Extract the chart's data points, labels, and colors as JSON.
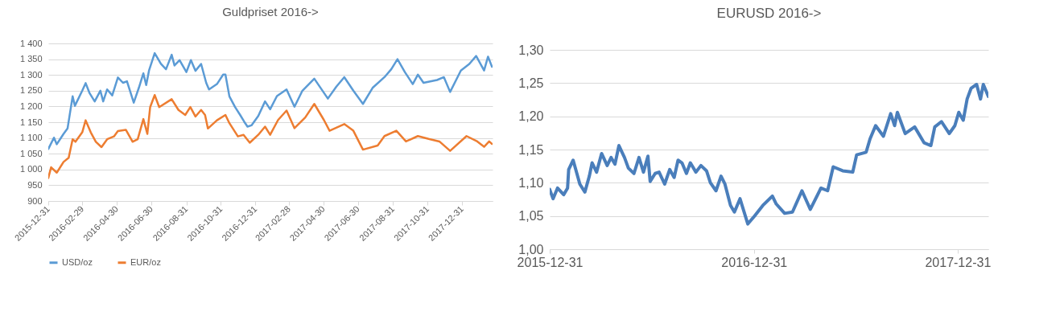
{
  "chart_data": [
    {
      "type": "line",
      "title": "Guldpriset  2016->",
      "xlim": [
        "2015-12-31",
        "2018-02-23"
      ],
      "xticks": [
        "2015-12-31",
        "2016-02-29",
        "2016-04-30",
        "2016-06-30",
        "2016-08-31",
        "2016-10-31",
        "2016-12-31",
        "2017-02-28",
        "2017-04-30",
        "2017-06-30",
        "2017-08-31",
        "2017-10-31",
        "2017-12-31"
      ],
      "ylim": [
        900,
        1400
      ],
      "yticks": [
        {
          "value": 900,
          "label": "900"
        },
        {
          "value": 950,
          "label": "950"
        },
        {
          "value": 1000,
          "label": "1 000"
        },
        {
          "value": 1050,
          "label": "1 050"
        },
        {
          "value": 1100,
          "label": "1 100"
        },
        {
          "value": 1150,
          "label": "1 150"
        },
        {
          "value": 1200,
          "label": "1 200"
        },
        {
          "value": 1250,
          "label": "1 250"
        },
        {
          "value": 1300,
          "label": "1 300"
        },
        {
          "value": 1350,
          "label": "1 350"
        },
        {
          "value": 1400,
          "label": "1 400"
        }
      ],
      "grid": "y",
      "legend": "bottom",
      "series": [
        {
          "name": "USD/oz",
          "color": "#5b9bd5",
          "x": [
            "2015-12-31",
            "2016-01-10",
            "2016-01-15",
            "2016-01-27",
            "2016-02-03",
            "2016-02-12",
            "2016-02-16",
            "2016-02-29",
            "2016-03-06",
            "2016-03-13",
            "2016-03-22",
            "2016-04-01",
            "2016-04-06",
            "2016-04-13",
            "2016-04-22",
            "2016-05-02",
            "2016-05-11",
            "2016-05-18",
            "2016-05-30",
            "2016-06-08",
            "2016-06-16",
            "2016-06-21",
            "2016-06-26",
            "2016-07-06",
            "2016-07-17",
            "2016-07-26",
            "2016-08-05",
            "2016-08-10",
            "2016-08-19",
            "2016-08-31",
            "2016-09-08",
            "2016-09-16",
            "2016-09-26",
            "2016-10-05",
            "2016-10-10",
            "2016-10-24",
            "2016-11-04",
            "2016-11-08",
            "2016-11-15",
            "2016-11-25",
            "2016-12-04",
            "2016-12-11",
            "2016-12-17",
            "2016-12-24",
            "2017-01-05",
            "2017-01-17",
            "2017-01-26",
            "2017-02-07",
            "2017-02-24",
            "2017-03-10",
            "2017-03-24",
            "2017-04-14",
            "2017-05-08",
            "2017-05-23",
            "2017-06-06",
            "2017-06-22",
            "2017-07-09",
            "2017-07-26",
            "2017-08-16",
            "2017-08-28",
            "2017-09-08",
            "2017-09-21",
            "2017-10-05",
            "2017-10-14",
            "2017-10-24",
            "2017-11-17",
            "2017-11-29",
            "2017-12-10",
            "2017-12-29",
            "2018-01-13",
            "2018-01-25",
            "2018-02-08",
            "2018-02-15",
            "2018-02-22"
          ],
          "values": [
            1065,
            1101,
            1080,
            1113,
            1130,
            1232,
            1202,
            1250,
            1274,
            1242,
            1216,
            1250,
            1216,
            1254,
            1235,
            1292,
            1275,
            1280,
            1212,
            1259,
            1305,
            1268,
            1314,
            1369,
            1335,
            1318,
            1364,
            1330,
            1347,
            1309,
            1347,
            1313,
            1335,
            1275,
            1254,
            1271,
            1301,
            1301,
            1232,
            1198,
            1173,
            1152,
            1136,
            1140,
            1170,
            1216,
            1191,
            1233,
            1254,
            1199,
            1250,
            1288,
            1225,
            1263,
            1293,
            1250,
            1208,
            1259,
            1293,
            1318,
            1350,
            1309,
            1271,
            1301,
            1275,
            1284,
            1293,
            1246,
            1314,
            1335,
            1360,
            1314,
            1358,
            1326
          ]
        },
        {
          "name": "EUR/oz",
          "color": "#ed7d31",
          "x": [
            "2015-12-31",
            "2016-01-05",
            "2016-01-15",
            "2016-01-27",
            "2016-02-05",
            "2016-02-12",
            "2016-02-17",
            "2016-02-29",
            "2016-03-06",
            "2016-03-15",
            "2016-03-24",
            "2016-04-03",
            "2016-04-13",
            "2016-04-25",
            "2016-05-02",
            "2016-05-16",
            "2016-05-28",
            "2016-06-06",
            "2016-06-16",
            "2016-06-23",
            "2016-06-28",
            "2016-07-06",
            "2016-07-14",
            "2016-08-05",
            "2016-08-17",
            "2016-08-29",
            "2016-09-07",
            "2016-09-16",
            "2016-09-26",
            "2016-10-03",
            "2016-10-08",
            "2016-10-24",
            "2016-11-08",
            "2016-11-15",
            "2016-11-30",
            "2016-12-10",
            "2016-12-21",
            "2017-01-05",
            "2017-01-17",
            "2017-01-26",
            "2017-02-09",
            "2017-02-24",
            "2017-03-10",
            "2017-03-29",
            "2017-04-14",
            "2017-05-01",
            "2017-05-11",
            "2017-06-06",
            "2017-06-22",
            "2017-07-09",
            "2017-08-04",
            "2017-08-16",
            "2017-09-06",
            "2017-09-23",
            "2017-10-14",
            "2017-11-02",
            "2017-11-21",
            "2017-12-10",
            "2018-01-08",
            "2018-01-27",
            "2018-02-08",
            "2018-02-17",
            "2018-02-22"
          ],
          "values": [
            973,
            1007,
            990,
            1024,
            1037,
            1096,
            1088,
            1118,
            1156,
            1118,
            1088,
            1071,
            1096,
            1105,
            1122,
            1126,
            1088,
            1096,
            1160,
            1113,
            1198,
            1236,
            1198,
            1223,
            1189,
            1173,
            1198,
            1168,
            1189,
            1173,
            1130,
            1156,
            1173,
            1147,
            1105,
            1110,
            1085,
            1110,
            1136,
            1110,
            1157,
            1187,
            1131,
            1165,
            1208,
            1157,
            1123,
            1144,
            1123,
            1063,
            1076,
            1106,
            1123,
            1089,
            1106,
            1097,
            1089,
            1059,
            1106,
            1089,
            1072,
            1089,
            1081
          ]
        }
      ]
    },
    {
      "type": "line",
      "title": "EURUSD 2016->",
      "xlim": [
        "2015-12-31",
        "2018-02-24"
      ],
      "xticks": [
        "2015-12-31",
        "2016-12-31",
        "2017-12-31"
      ],
      "ylim": [
        1.0,
        1.3
      ],
      "yticks": [
        {
          "value": 1.0,
          "label": "1,00"
        },
        {
          "value": 1.05,
          "label": "1,05"
        },
        {
          "value": 1.1,
          "label": "1,10"
        },
        {
          "value": 1.15,
          "label": "1,15"
        },
        {
          "value": 1.2,
          "label": "1,20"
        },
        {
          "value": 1.25,
          "label": "1,25"
        },
        {
          "value": 1.3,
          "label": "1,30"
        }
      ],
      "grid": "y",
      "series": [
        {
          "color": "#4a7ebb",
          "x": [
            "2015-12-31",
            "2016-01-06",
            "2016-01-14",
            "2016-01-25",
            "2016-02-01",
            "2016-02-03",
            "2016-02-11",
            "2016-02-23",
            "2016-03-03",
            "2016-03-11",
            "2016-03-16",
            "2016-03-24",
            "2016-04-02",
            "2016-04-12",
            "2016-04-19",
            "2016-04-26",
            "2016-05-03",
            "2016-05-13",
            "2016-05-20",
            "2016-05-30",
            "2016-06-08",
            "2016-06-16",
            "2016-06-24",
            "2016-06-28",
            "2016-07-07",
            "2016-07-14",
            "2016-07-24",
            "2016-08-02",
            "2016-08-10",
            "2016-08-17",
            "2016-08-24",
            "2016-09-01",
            "2016-09-08",
            "2016-09-18",
            "2016-09-27",
            "2016-10-07",
            "2016-10-14",
            "2016-10-24",
            "2016-11-02",
            "2016-11-09",
            "2016-11-19",
            "2016-11-26",
            "2016-12-06",
            "2016-12-20",
            "2017-01-01",
            "2017-01-16",
            "2017-02-02",
            "2017-02-09",
            "2017-02-24",
            "2017-03-10",
            "2017-03-27",
            "2017-04-11",
            "2017-04-30",
            "2017-05-12",
            "2017-05-22",
            "2017-06-08",
            "2017-06-26",
            "2017-07-03",
            "2017-07-20",
            "2017-07-27",
            "2017-08-06",
            "2017-08-20",
            "2017-09-02",
            "2017-09-09",
            "2017-09-14",
            "2017-09-28",
            "2017-10-15",
            "2017-11-01",
            "2017-11-13",
            "2017-11-20",
            "2017-12-02",
            "2017-12-16",
            "2017-12-26",
            "2018-01-02",
            "2018-01-10",
            "2018-01-17",
            "2018-01-24",
            "2018-02-03",
            "2018-02-10",
            "2018-02-15",
            "2018-02-24"
          ],
          "values": [
            1.09,
            1.076,
            1.092,
            1.082,
            1.092,
            1.12,
            1.134,
            1.098,
            1.086,
            1.11,
            1.13,
            1.116,
            1.144,
            1.126,
            1.138,
            1.128,
            1.156,
            1.138,
            1.122,
            1.114,
            1.138,
            1.116,
            1.14,
            1.102,
            1.114,
            1.116,
            1.098,
            1.12,
            1.108,
            1.134,
            1.13,
            1.114,
            1.13,
            1.116,
            1.126,
            1.118,
            1.1,
            1.088,
            1.11,
            1.098,
            1.066,
            1.056,
            1.076,
            1.038,
            1.05,
            1.066,
            1.08,
            1.068,
            1.054,
            1.056,
            1.088,
            1.06,
            1.092,
            1.088,
            1.124,
            1.118,
            1.116,
            1.142,
            1.146,
            1.166,
            1.186,
            1.17,
            1.204,
            1.186,
            1.206,
            1.174,
            1.184,
            1.16,
            1.156,
            1.184,
            1.192,
            1.174,
            1.186,
            1.206,
            1.194,
            1.226,
            1.242,
            1.248,
            1.226,
            1.248,
            1.23
          ]
        }
      ]
    }
  ]
}
